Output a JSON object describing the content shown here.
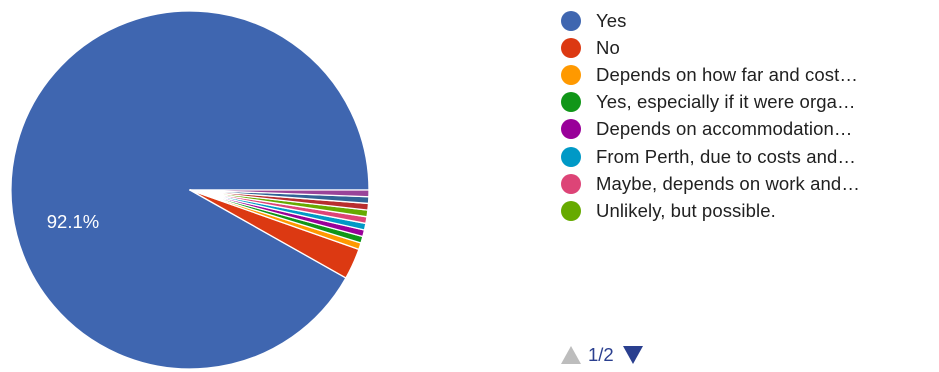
{
  "chart_data": {
    "type": "pie",
    "slices": [
      {
        "label": "Yes",
        "value": 92.1,
        "color": "#3f66b0",
        "show_label": "92.1%"
      },
      {
        "label": "No",
        "value": 2.8,
        "color": "#dc3912",
        "show_label": ""
      },
      {
        "label": "Depends on how far and cost…",
        "value": 0.6,
        "color": "#ff9900",
        "show_label": ""
      },
      {
        "label": "Yes, especially if it were orga…",
        "value": 0.6,
        "color": "#109618",
        "show_label": ""
      },
      {
        "label": "Depends on accommodation…",
        "value": 0.6,
        "color": "#990099",
        "show_label": ""
      },
      {
        "label": "From Perth, due to costs and…",
        "value": 0.6,
        "color": "#0099c6",
        "show_label": ""
      },
      {
        "label": "Maybe, depends on work and…",
        "value": 0.6,
        "color": "#dd4477",
        "show_label": ""
      },
      {
        "label": "Unlikely, but possible.",
        "value": 0.6,
        "color": "#66aa00",
        "show_label": ""
      },
      {
        "label": "",
        "value": 0.6,
        "color": "#b82e2e",
        "show_label": ""
      },
      {
        "label": "",
        "value": 0.6,
        "color": "#316395",
        "show_label": ""
      },
      {
        "label": "",
        "value": 0.6,
        "color": "#994499",
        "show_label": ""
      }
    ]
  },
  "pager": {
    "text": "1/2",
    "prev_icon": "triangle-up-icon",
    "next_icon": "triangle-down-icon"
  }
}
